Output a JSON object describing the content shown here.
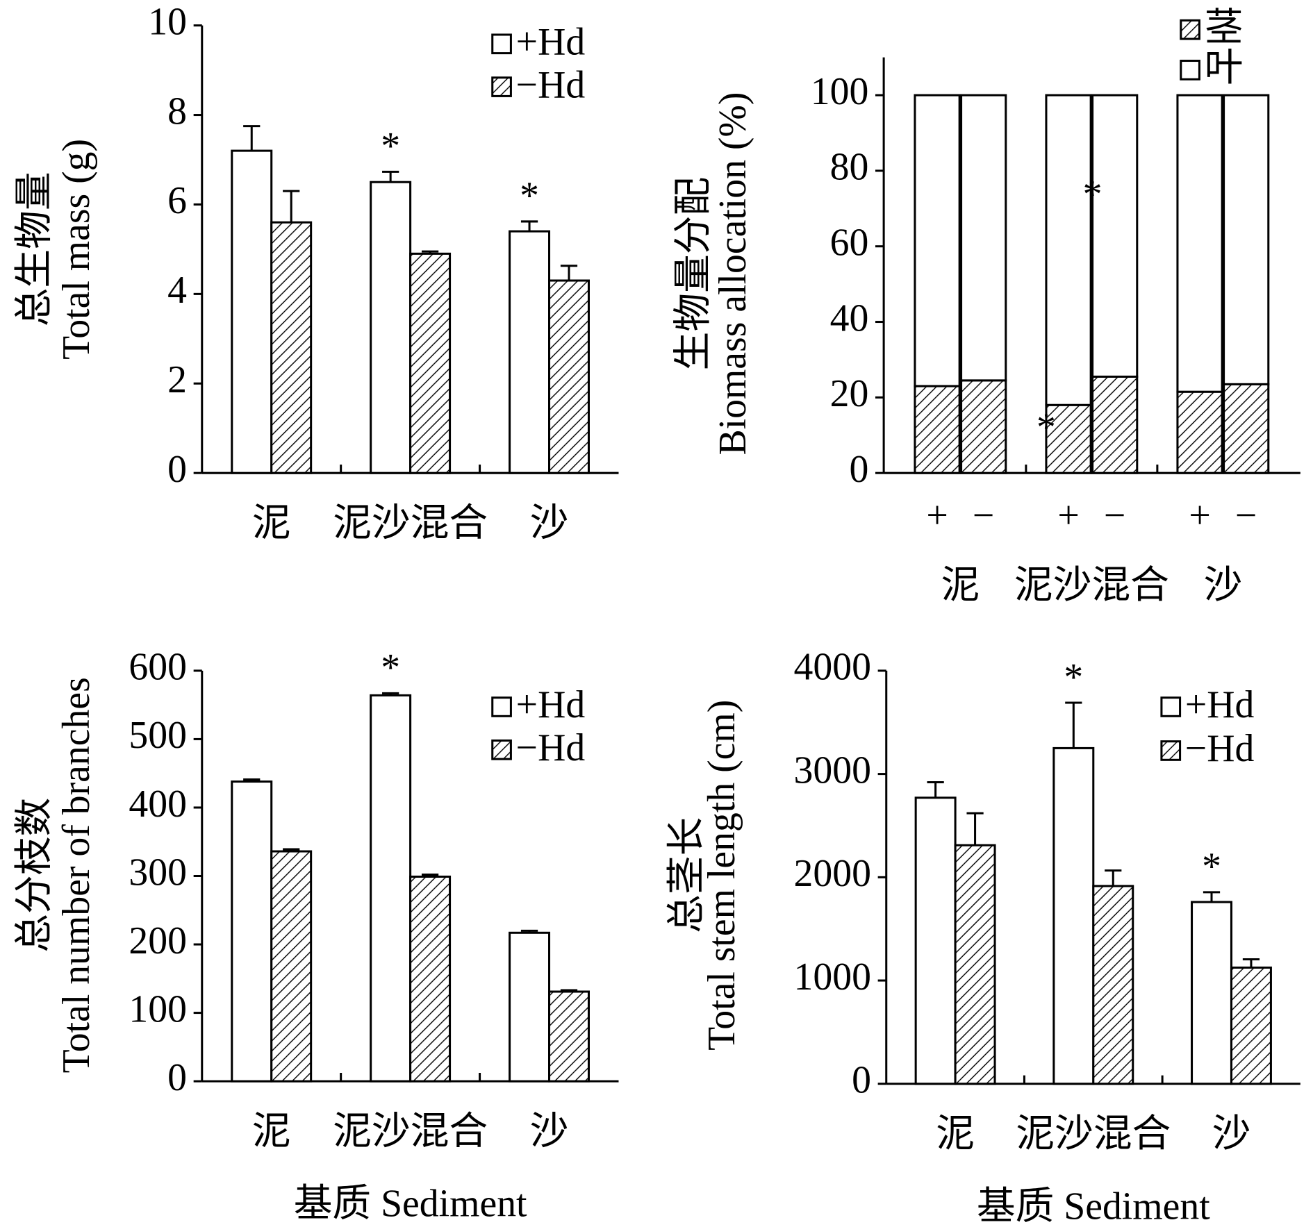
{
  "chart_data": [
    {
      "type": "bar",
      "ylabel": [
        "总生物量",
        "Total mass (g)"
      ],
      "categories": [
        "泥",
        "泥沙混合",
        "沙"
      ],
      "series": [
        {
          "name": "+Hd",
          "color": "#ffffff",
          "hatch": false,
          "values": [
            7.2,
            6.5,
            5.4
          ],
          "errors": [
            0.55,
            0.23,
            0.22
          ],
          "marks": [
            null,
            "*",
            "*"
          ]
        },
        {
          "name": "−Hd",
          "color": "#ffffff",
          "hatch": true,
          "values": [
            5.6,
            4.9,
            4.3
          ],
          "errors": [
            0.7,
            0.05,
            0.33
          ],
          "marks": [
            null,
            null,
            null
          ]
        }
      ],
      "ylim": [
        0,
        10
      ],
      "yticks": [
        0,
        2,
        4,
        6,
        8,
        10
      ],
      "legend": "upper right"
    },
    {
      "type": "stacked_bar",
      "ylabel": [
        "生物量分配",
        "Biomass allocation (%)"
      ],
      "categories": [
        "+",
        "−",
        "+",
        "−",
        "+",
        "−"
      ],
      "groups": [
        "泥",
        "泥沙混合",
        "沙"
      ],
      "series": [
        {
          "name": "茎",
          "color": "#ffffff",
          "hatch": true,
          "values": [
            23,
            24.5,
            18,
            25.5,
            21.5,
            23.5
          ],
          "marks": [
            null,
            null,
            "*",
            null,
            null,
            null
          ]
        },
        {
          "name": "叶",
          "color": "#ffffff",
          "hatch": false,
          "values": [
            77,
            75.5,
            82,
            74.5,
            78.5,
            76.5
          ],
          "marks": [
            null,
            null,
            null,
            "*",
            null,
            null
          ]
        }
      ],
      "ylim": [
        0,
        110
      ],
      "yticks": [
        0,
        20,
        40,
        60,
        80,
        100
      ],
      "legend": "upper right"
    },
    {
      "type": "bar",
      "ylabel": [
        "总分枝数",
        "Total number of branches"
      ],
      "xlabel": "基质 Sediment",
      "categories": [
        "泥",
        "泥沙混合",
        "沙"
      ],
      "series": [
        {
          "name": "+Hd",
          "color": "#ffffff",
          "hatch": false,
          "values": [
            438,
            564,
            217
          ],
          "errors": [
            3,
            3,
            3
          ],
          "marks": [
            null,
            "*",
            null
          ]
        },
        {
          "name": "−Hd",
          "color": "#ffffff",
          "hatch": true,
          "values": [
            336,
            299,
            131
          ],
          "errors": [
            3,
            3,
            2
          ],
          "marks": [
            null,
            null,
            null
          ]
        }
      ],
      "ylim": [
        0,
        600
      ],
      "yticks": [
        0,
        100,
        200,
        300,
        400,
        500,
        600
      ],
      "legend": "right"
    },
    {
      "type": "bar",
      "ylabel": [
        "总茎长",
        "Total stem length (cm)"
      ],
      "xlabel": "基质 Sediment",
      "categories": [
        "泥",
        "泥沙混合",
        "沙"
      ],
      "series": [
        {
          "name": "+Hd",
          "color": "#ffffff",
          "hatch": false,
          "values": [
            2770,
            3250,
            1760
          ],
          "errors": [
            150,
            440,
            95
          ],
          "marks": [
            null,
            "*",
            "*"
          ]
        },
        {
          "name": "−Hd",
          "color": "#ffffff",
          "hatch": true,
          "values": [
            2310,
            1915,
            1125
          ],
          "errors": [
            310,
            150,
            80
          ],
          "marks": [
            null,
            null,
            null
          ]
        }
      ],
      "ylim": [
        0,
        4000
      ],
      "yticks": [
        0,
        1000,
        2000,
        3000,
        4000
      ],
      "legend": "upper right"
    }
  ]
}
